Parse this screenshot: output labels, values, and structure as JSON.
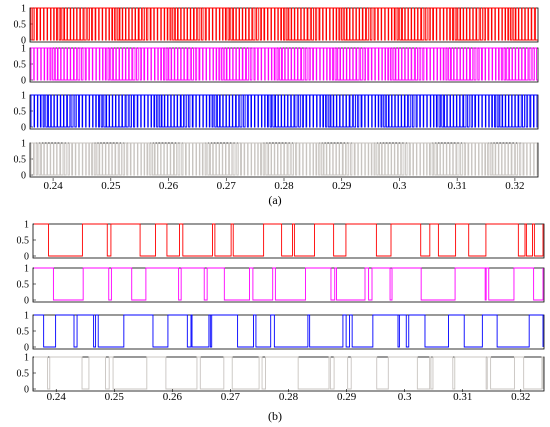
{
  "chart_data": [
    {
      "type": "line",
      "panel_caption": "(a)",
      "x_range": [
        0.236,
        0.324
      ],
      "x_ticks": [
        "0.24",
        "0.25",
        "0.26",
        "0.27",
        "0.28",
        "0.29",
        "0.3",
        "0.31",
        "0.32"
      ],
      "y_ticks": [
        "1",
        "0.5",
        "0"
      ],
      "ylim": [
        0,
        1
      ],
      "style": "dense PWM switching signals (0/1)",
      "series": [
        {
          "color": "#ff0000",
          "switching": "high-frequency",
          "levels": [
            0,
            1
          ]
        },
        {
          "color": "#ff00ff",
          "switching": "high-frequency",
          "levels": [
            0,
            1
          ]
        },
        {
          "color": "#0000ff",
          "switching": "high-frequency",
          "levels": [
            0,
            1
          ]
        },
        {
          "color": "#c8c4c0",
          "switching": "high-frequency",
          "levels": [
            0,
            1
          ]
        }
      ]
    },
    {
      "type": "line",
      "panel_caption": "(b)",
      "x_range": [
        0.236,
        0.324
      ],
      "x_ticks": [
        "0.24",
        "0.25",
        "0.26",
        "0.27",
        "0.28",
        "0.29",
        "0.3",
        "0.31",
        "0.32"
      ],
      "y_ticks": [
        "1",
        "0.5",
        "0"
      ],
      "ylim": [
        0,
        1
      ],
      "style": "lower-frequency switching signals (0/1)",
      "series": [
        {
          "color": "#ff0000",
          "switching": "low-frequency",
          "levels": [
            0,
            1
          ]
        },
        {
          "color": "#ff00ff",
          "switching": "low-frequency",
          "levels": [
            0,
            1
          ]
        },
        {
          "color": "#0000ff",
          "switching": "low-frequency",
          "levels": [
            0,
            1
          ]
        },
        {
          "color": "#c8c4c0",
          "switching": "low-frequency",
          "levels": [
            0,
            1
          ]
        }
      ]
    }
  ]
}
